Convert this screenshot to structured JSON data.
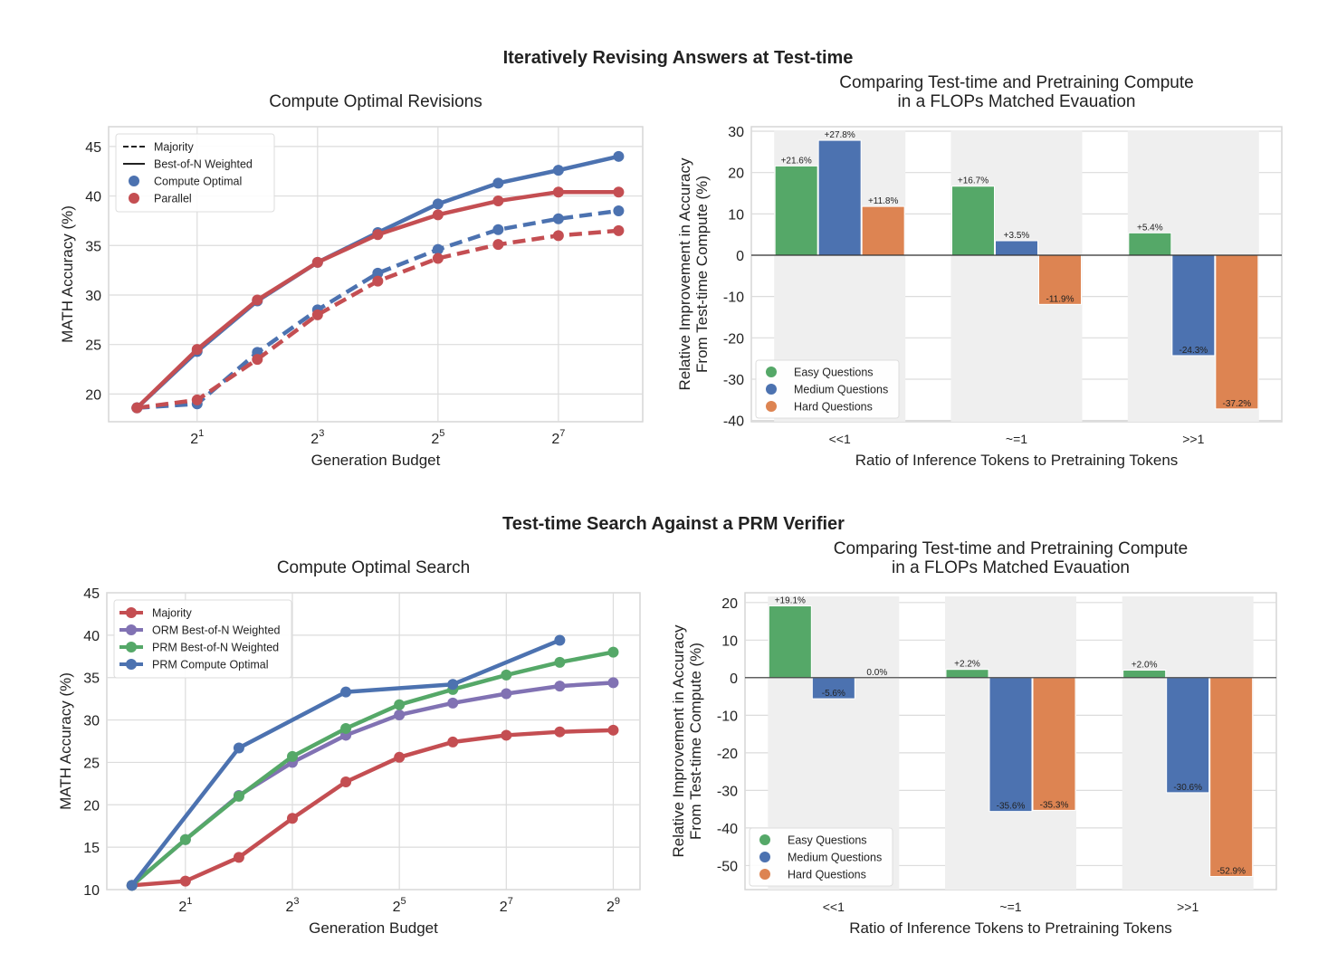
{
  "suptitle_top": "Iteratively Revising Answers at Test-time",
  "suptitle_bottom": "Test-time Search Against a PRM Verifier",
  "colors": {
    "blue": "#4c72b0",
    "red": "#c44e52",
    "green": "#55a868",
    "purple": "#8172b3",
    "orange": "#dd8452"
  },
  "chart_data": [
    {
      "type": "line",
      "title": "Compute Optimal Revisions",
      "xlabel": "Generation Budget",
      "ylabel": "MATH Accuracy (%)",
      "x_exponents": [
        0,
        1,
        2,
        3,
        4,
        5,
        6,
        7,
        8
      ],
      "xticks": [
        1,
        3,
        5,
        7
      ],
      "xlim": [
        -0.47,
        8.4
      ],
      "ylim": [
        17.2,
        47
      ],
      "yticks": [
        20,
        25,
        30,
        35,
        40,
        45
      ],
      "grid": true,
      "legend_position": "top-left",
      "legend": [
        {
          "label": "Majority",
          "kind": "dash"
        },
        {
          "label": "Best-of-N Weighted",
          "kind": "solid"
        },
        {
          "label": "Compute Optimal",
          "kind": "dot",
          "color": "blue"
        },
        {
          "label": "Parallel",
          "kind": "dot",
          "color": "red"
        }
      ],
      "series": [
        {
          "name": "Compute Optimal Best-of-N Weighted",
          "color": "blue",
          "dash": false,
          "values": [
            18.6,
            24.3,
            29.4,
            33.3,
            36.3,
            39.2,
            41.3,
            42.6,
            44.0
          ]
        },
        {
          "name": "Parallel Best-of-N Weighted",
          "color": "red",
          "dash": false,
          "values": [
            18.6,
            24.5,
            29.5,
            33.3,
            36.1,
            38.1,
            39.5,
            40.4,
            40.4
          ]
        },
        {
          "name": "Compute Optimal Majority",
          "color": "blue",
          "dash": true,
          "values": [
            18.6,
            19.0,
            24.2,
            28.5,
            32.2,
            34.6,
            36.6,
            37.7,
            38.5
          ]
        },
        {
          "name": "Parallel Majority",
          "color": "red",
          "dash": true,
          "values": [
            18.6,
            19.4,
            23.5,
            28.0,
            31.4,
            33.7,
            35.1,
            36.0,
            36.5
          ]
        }
      ]
    },
    {
      "type": "bar",
      "title": "Comparing Test-time and Pretraining Compute\nin a FLOPs Matched Evauation",
      "xlabel": "Ratio of Inference Tokens to Pretraining Tokens",
      "ylabel": "Relative Improvement in Accuracy\nFrom Test-time Compute (%)",
      "categories": [
        "<<1",
        "~=1",
        ">>1"
      ],
      "ylim": [
        -40.3,
        31.1
      ],
      "yticks": [
        -40,
        -30,
        -20,
        -10,
        0,
        10,
        20,
        30
      ],
      "grid": true,
      "legend_position": "bottom-left",
      "series": [
        {
          "name": "Easy Questions",
          "color": "green",
          "values": [
            21.6,
            16.7,
            5.4
          ],
          "labels": [
            "+21.6%",
            "+16.7%",
            "+5.4%"
          ]
        },
        {
          "name": "Medium Questions",
          "color": "blue",
          "values": [
            27.8,
            3.5,
            -24.3
          ],
          "labels": [
            "+27.8%",
            "+3.5%",
            "-24.3%"
          ]
        },
        {
          "name": "Hard Questions",
          "color": "orange",
          "values": [
            11.8,
            -11.9,
            -37.2
          ],
          "labels": [
            "+11.8%",
            "-11.9%",
            "-37.2%"
          ]
        }
      ]
    },
    {
      "type": "line",
      "title": "Compute Optimal Search",
      "xlabel": "Generation Budget",
      "ylabel": "MATH Accuracy (%)",
      "x_exponents": [
        0,
        1,
        2,
        3,
        4,
        5,
        6,
        7,
        8,
        9
      ],
      "xticks": [
        1,
        3,
        5,
        7,
        9
      ],
      "xlim": [
        -0.47,
        9.5
      ],
      "ylim": [
        10,
        45
      ],
      "yticks": [
        10,
        15,
        20,
        25,
        30,
        35,
        40,
        45
      ],
      "grid": true,
      "legend_position": "top-left",
      "legend": [
        {
          "label": "Majority",
          "kind": "line",
          "color": "red"
        },
        {
          "label": "ORM Best-of-N Weighted",
          "kind": "line",
          "color": "purple"
        },
        {
          "label": "PRM Best-of-N Weighted",
          "kind": "line",
          "color": "green"
        },
        {
          "label": "PRM Compute Optimal",
          "kind": "line",
          "color": "blue"
        }
      ],
      "series": [
        {
          "name": "Majority",
          "color": "red",
          "dash": false,
          "values": [
            10.5,
            11.0,
            13.8,
            18.4,
            22.7,
            25.6,
            27.4,
            28.2,
            28.6,
            28.8
          ]
        },
        {
          "name": "ORM Best-of-N Weighted",
          "color": "purple",
          "dash": false,
          "values": [
            10.5,
            15.9,
            21.1,
            25.0,
            28.2,
            30.6,
            32.0,
            33.1,
            34.0,
            34.4
          ]
        },
        {
          "name": "PRM Best-of-N Weighted",
          "color": "green",
          "dash": false,
          "values": [
            10.5,
            15.9,
            21.0,
            25.7,
            29.0,
            31.8,
            33.6,
            35.3,
            36.8,
            38.0
          ]
        },
        {
          "name": "PRM Compute Optimal",
          "color": "blue",
          "dash": false,
          "values": [
            10.5,
            null,
            26.7,
            null,
            33.3,
            null,
            34.2,
            null,
            39.4,
            null
          ]
        }
      ]
    },
    {
      "type": "bar",
      "title": "Comparing Test-time and Pretraining Compute\nin a FLOPs Matched Evauation",
      "xlabel": "Ratio of Inference Tokens to Pretraining Tokens",
      "ylabel": "Relative Improvement in Accuracy\nFrom Test-time Compute (%)",
      "categories": [
        "<<1",
        "~=1",
        ">>1"
      ],
      "ylim": [
        -56.4,
        22.6
      ],
      "yticks": [
        -50,
        -40,
        -30,
        -20,
        -10,
        0,
        10,
        20
      ],
      "grid": true,
      "legend_position": "bottom-left",
      "series": [
        {
          "name": "Easy Questions",
          "color": "green",
          "values": [
            19.1,
            2.2,
            2.0
          ],
          "labels": [
            "+19.1%",
            "+2.2%",
            "+2.0%"
          ]
        },
        {
          "name": "Medium Questions",
          "color": "blue",
          "values": [
            -5.6,
            -35.6,
            -30.6
          ],
          "labels": [
            "-5.6%",
            "-35.6%",
            "-30.6%"
          ]
        },
        {
          "name": "Hard Questions",
          "color": "orange",
          "values": [
            0.0,
            -35.3,
            -52.9
          ],
          "labels": [
            "0.0%",
            "-35.3%",
            "-52.9%"
          ]
        }
      ]
    }
  ]
}
